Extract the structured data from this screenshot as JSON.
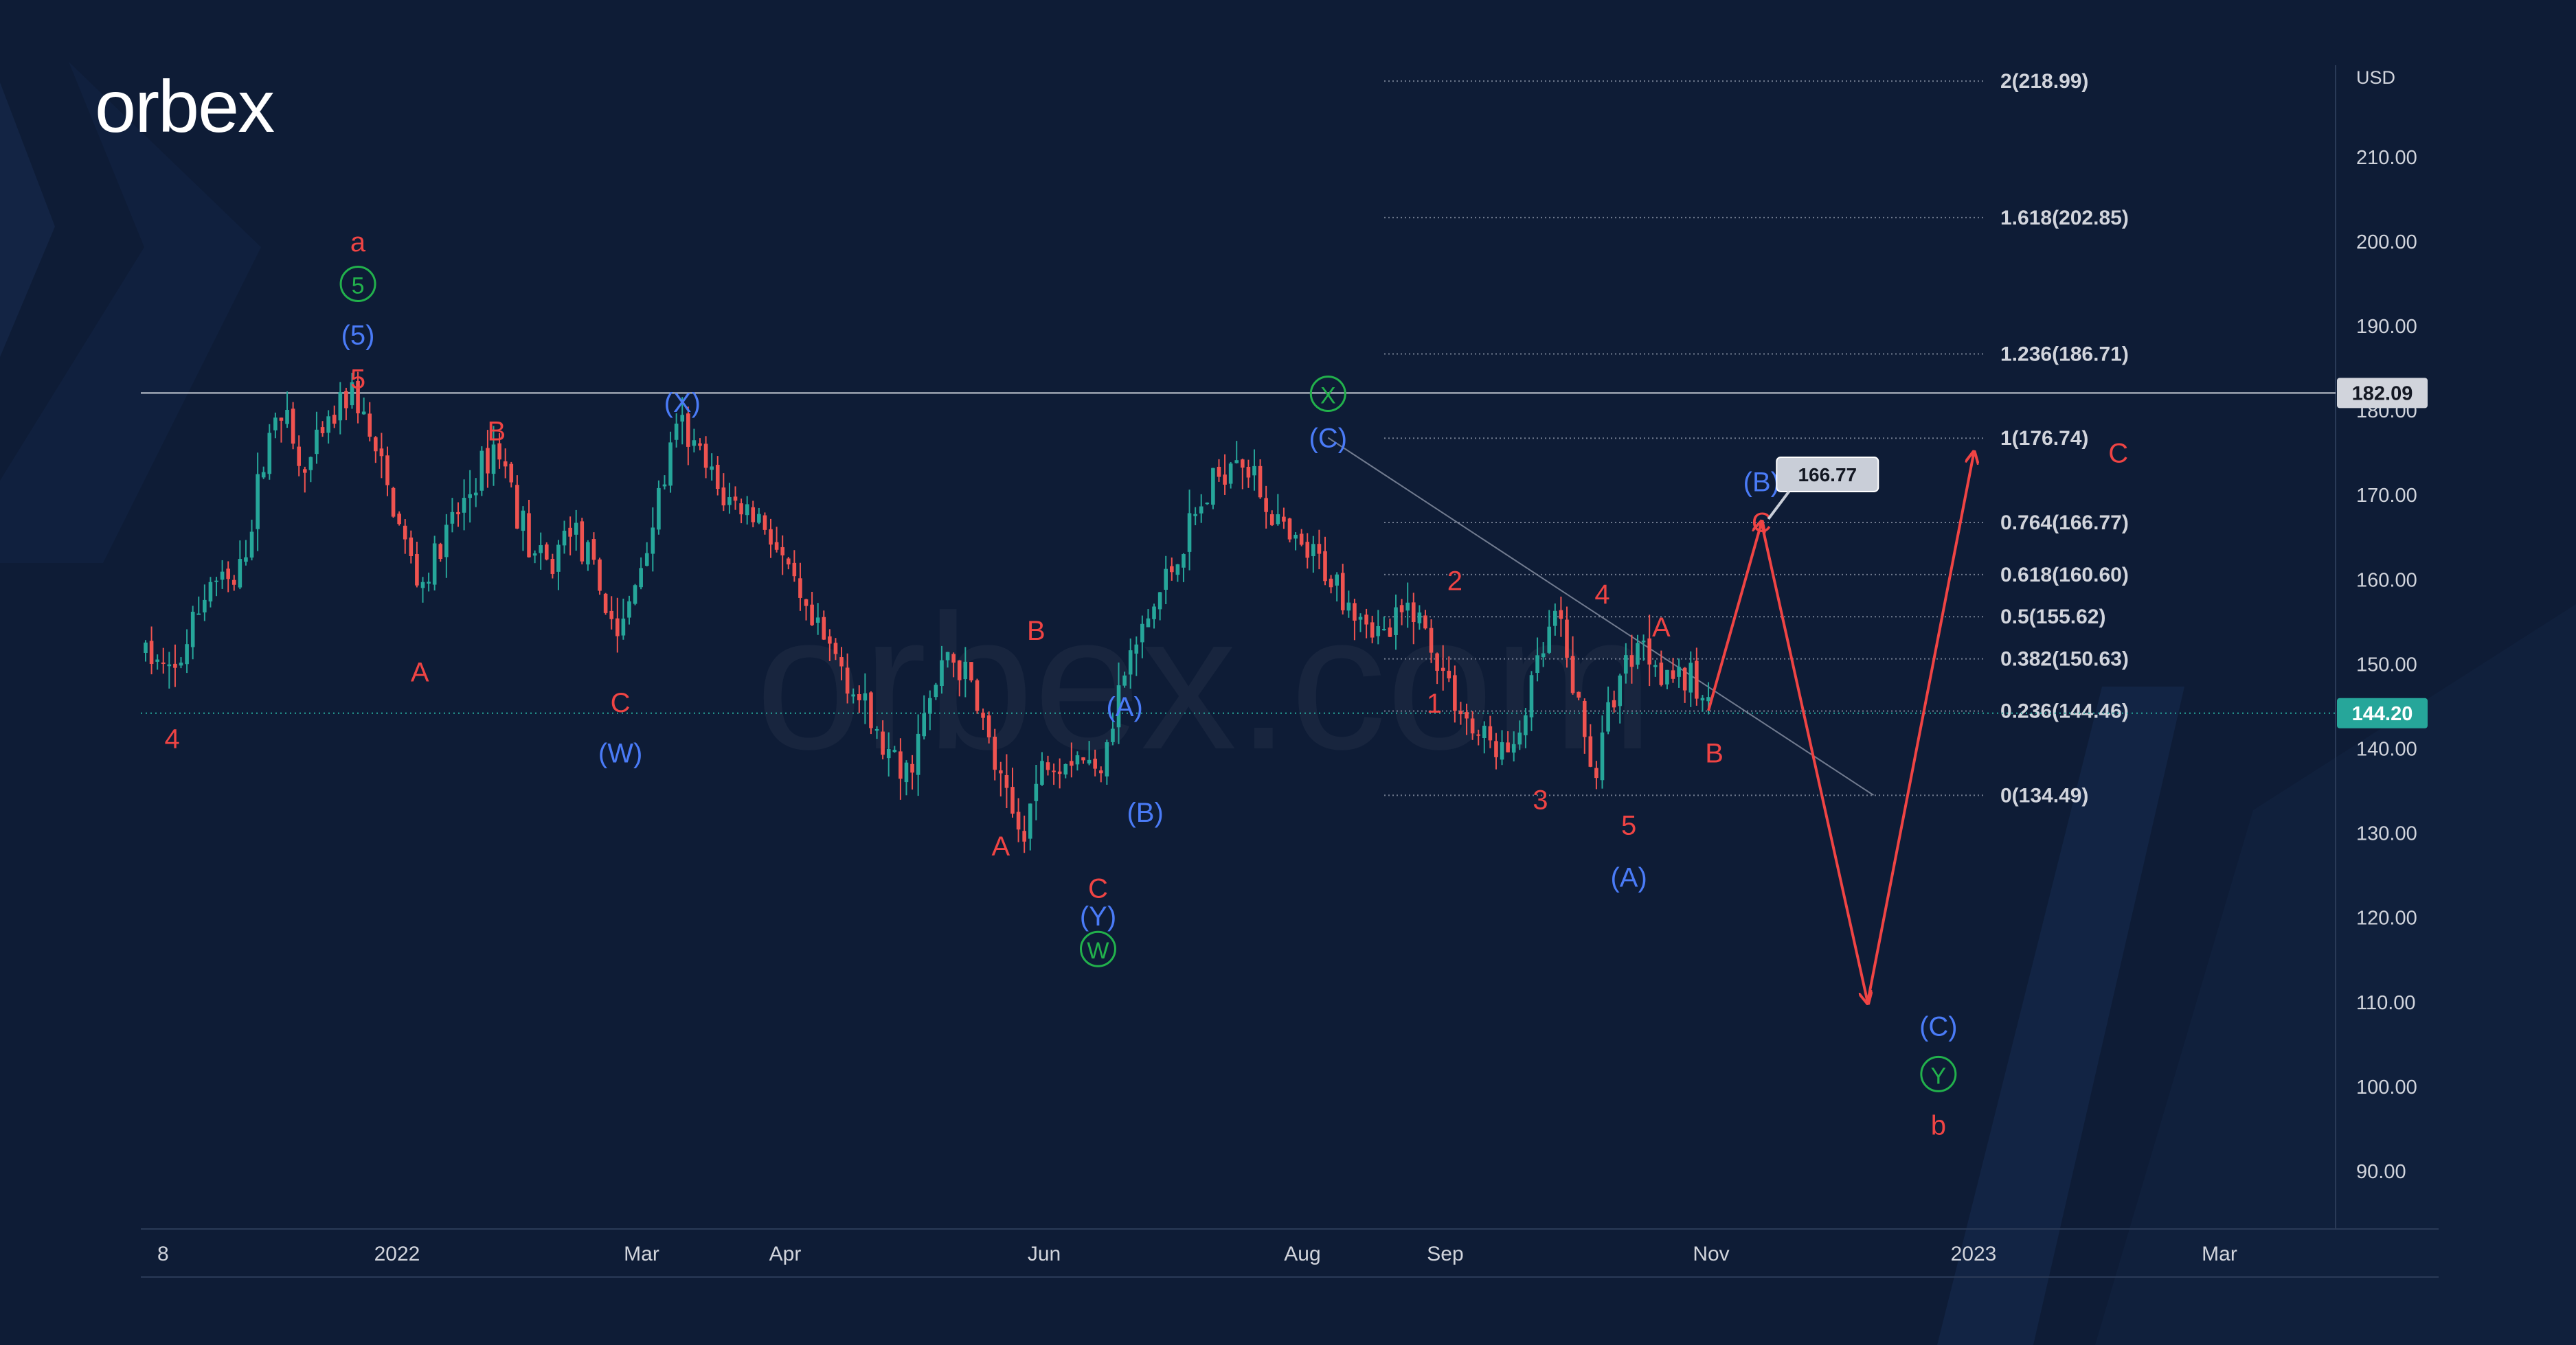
{
  "brand": {
    "logo_text": "orbex",
    "watermark": "orbex.com"
  },
  "colors": {
    "background": "#0e1c36",
    "bull": "#26a69a",
    "bear": "#ef5350",
    "wave_red": "#ef4444",
    "wave_blue": "#4a7bf7",
    "wave_green": "#22b14c",
    "text": "#d1d4dc",
    "fib_line": "#8a93a6",
    "price_badge": "#26a69a",
    "resistance_badge": "#d1d4dc"
  },
  "chart_data": {
    "type": "candlestick",
    "currency": "USD",
    "x_ticks": [
      "8",
      "2022",
      "Mar",
      "Apr",
      "Jun",
      "Aug",
      "Sep",
      "Nov",
      "2023",
      "Mar"
    ],
    "y_ticks": [
      "210.00",
      "200.00",
      "190.00",
      "180.00",
      "170.00",
      "160.00",
      "150.00",
      "140.00",
      "130.00",
      "120.00",
      "110.00",
      "100.00",
      "90.00"
    ],
    "ylim": [
      82,
      219
    ],
    "last_price": {
      "value": 144.2,
      "label": "144.20"
    },
    "horizontal_level": {
      "value": 182.09,
      "label": "182.09"
    },
    "target_label": {
      "value": 166.77,
      "label": "166.77"
    },
    "fib_levels": [
      {
        "value": 218.99,
        "label": "2(218.99)"
      },
      {
        "value": 202.85,
        "label": "1.618(202.85)"
      },
      {
        "value": 186.71,
        "label": "1.236(186.71)"
      },
      {
        "value": 176.74,
        "label": "1(176.74)"
      },
      {
        "value": 166.77,
        "label": "0.764(166.77)"
      },
      {
        "value": 160.6,
        "label": "0.618(160.60)"
      },
      {
        "value": 155.62,
        "label": "0.5(155.62)"
      },
      {
        "value": 150.63,
        "label": "0.382(150.63)"
      },
      {
        "value": 144.46,
        "label": "0.236(144.46)"
      },
      {
        "value": 134.49,
        "label": "0(134.49)"
      }
    ],
    "price_path": [
      [
        0.0,
        151.5
      ],
      [
        4.5,
        148
      ],
      [
        11,
        160
      ],
      [
        15.5,
        159
      ],
      [
        22.5,
        182
      ],
      [
        26.5,
        172
      ],
      [
        34.5,
        182.5
      ],
      [
        35.5,
        182
      ],
      [
        46.5,
        159
      ],
      [
        59.5,
        176.5
      ],
      [
        65.5,
        163
      ],
      [
        68.5,
        161
      ],
      [
        72,
        167
      ],
      [
        80.5,
        153
      ],
      [
        90.5,
        178.5
      ],
      [
        97.5,
        170
      ],
      [
        105,
        167
      ],
      [
        112,
        155
      ],
      [
        118,
        150
      ],
      [
        125,
        140
      ],
      [
        128.5,
        136
      ],
      [
        136,
        151.5
      ],
      [
        140.5,
        147
      ],
      [
        145.5,
        134
      ],
      [
        148.5,
        130
      ],
      [
        152.5,
        139
      ],
      [
        158.5,
        139.5
      ],
      [
        161,
        137
      ],
      [
        166,
        149
      ],
      [
        173,
        160
      ],
      [
        178.5,
        168
      ],
      [
        185,
        176
      ],
      [
        188.5,
        171
      ],
      [
        194,
        164
      ],
      [
        199,
        162
      ],
      [
        204,
        158
      ],
      [
        210,
        153
      ],
      [
        215,
        157
      ],
      [
        220,
        149
      ],
      [
        225,
        142
      ],
      [
        232,
        139
      ],
      [
        234,
        145
      ],
      [
        239,
        155.5
      ],
      [
        242,
        148
      ],
      [
        244,
        141
      ],
      [
        246,
        137.5
      ],
      [
        249,
        147
      ],
      [
        253,
        153
      ],
      [
        257,
        150
      ],
      [
        261,
        148
      ],
      [
        263,
        147
      ],
      [
        265,
        144.5
      ]
    ],
    "forecast_path": [
      [
        265,
        144.5
      ],
      [
        274,
        166.77
      ],
      [
        292,
        110
      ],
      [
        310,
        175
      ]
    ],
    "wave_labels": [
      {
        "text": "a",
        "color": "red",
        "t": 36,
        "v": 200
      },
      {
        "text": "5",
        "color": "green",
        "circle": true,
        "t": 36,
        "v": 195
      },
      {
        "text": "(5)",
        "color": "blue",
        "t": 36,
        "v": 189
      },
      {
        "text": "5",
        "color": "red",
        "t": 36,
        "v": 183.8
      },
      {
        "text": "4",
        "color": "red",
        "t": 4.5,
        "v": 141.2
      },
      {
        "text": "A",
        "color": "red",
        "t": 46.5,
        "v": 149.1
      },
      {
        "text": "B",
        "color": "red",
        "t": 59.5,
        "v": 177.6
      },
      {
        "text": "C",
        "color": "red",
        "t": 80.5,
        "v": 145.5
      },
      {
        "text": "(W)",
        "color": "blue",
        "t": 80.5,
        "v": 139.5
      },
      {
        "text": "(X)",
        "color": "blue",
        "t": 91,
        "v": 181
      },
      {
        "text": "A",
        "color": "red",
        "t": 145,
        "v": 128.5
      },
      {
        "text": "B",
        "color": "red",
        "t": 151,
        "v": 154
      },
      {
        "text": "(A)",
        "color": "blue",
        "t": 166,
        "v": 145
      },
      {
        "text": "(B)",
        "color": "blue",
        "t": 169.5,
        "v": 132.5
      },
      {
        "text": "C",
        "color": "red",
        "t": 161.5,
        "v": 123.5
      },
      {
        "text": "(Y)",
        "color": "blue",
        "t": 161.5,
        "v": 120.2
      },
      {
        "text": "W",
        "color": "green",
        "circle": true,
        "t": 161.5,
        "v": 116.3
      },
      {
        "text": "X",
        "color": "green",
        "circle": true,
        "t": 200.5,
        "v": 182
      },
      {
        "text": "(C)",
        "color": "blue",
        "t": 200.5,
        "v": 176.8
      },
      {
        "text": "1",
        "color": "red",
        "t": 218.5,
        "v": 145.4
      },
      {
        "text": "2",
        "color": "red",
        "t": 222,
        "v": 159.9
      },
      {
        "text": "3",
        "color": "red",
        "t": 236.5,
        "v": 134
      },
      {
        "text": "4",
        "color": "red",
        "t": 247,
        "v": 158.3
      },
      {
        "text": "5",
        "color": "red",
        "t": 251.5,
        "v": 131
      },
      {
        "text": "(A)",
        "color": "blue",
        "t": 251.5,
        "v": 124.8
      },
      {
        "text": "A",
        "color": "red",
        "t": 257,
        "v": 154.4
      },
      {
        "text": "B",
        "color": "red",
        "t": 266,
        "v": 139.5
      },
      {
        "text": "C",
        "color": "red",
        "t": 274,
        "v": 166.8
      },
      {
        "text": "(B)",
        "color": "blue",
        "t": 274,
        "v": 171.6
      },
      {
        "text": "(C)",
        "color": "blue",
        "t": 304,
        "v": 107.2
      },
      {
        "text": "Y",
        "color": "green",
        "circle": true,
        "t": 304,
        "v": 101.5
      },
      {
        "text": "b",
        "color": "red",
        "t": 304,
        "v": 95.5
      },
      {
        "text": "C",
        "color": "red",
        "t": 334.5,
        "v": 175
      }
    ]
  }
}
